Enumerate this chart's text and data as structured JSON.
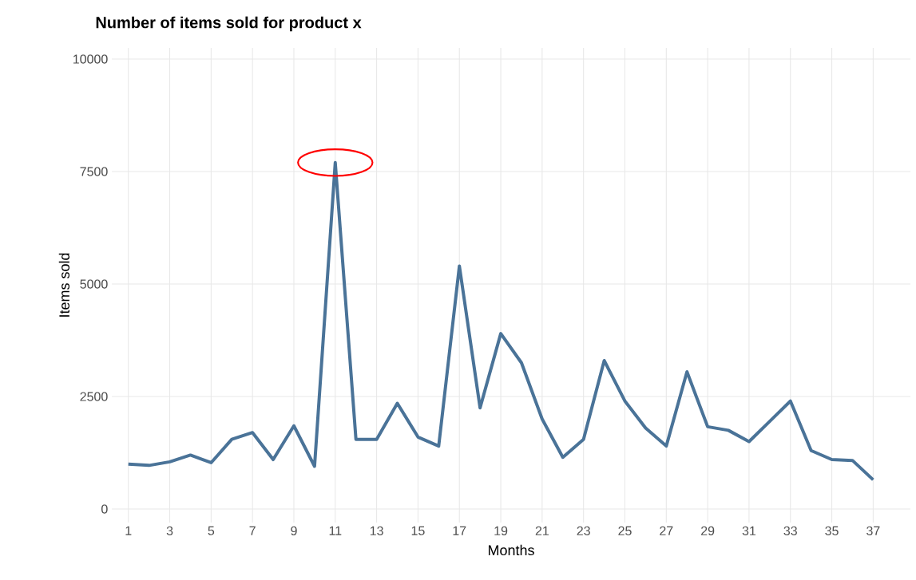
{
  "chart_data": {
    "type": "line",
    "title": "Number of items sold for product x",
    "xlabel": "Months",
    "ylabel": "Items sold",
    "x": [
      1,
      2,
      3,
      4,
      5,
      6,
      7,
      8,
      9,
      10,
      11,
      12,
      13,
      14,
      15,
      16,
      17,
      18,
      19,
      20,
      21,
      22,
      23,
      24,
      25,
      26,
      27,
      28,
      29,
      30,
      31,
      32,
      33,
      34,
      35,
      36,
      37
    ],
    "series": [
      {
        "color": "#4a7398",
        "values": [
          1000,
          970,
          1050,
          1200,
          1030,
          1550,
          1700,
          1100,
          1850,
          950,
          7700,
          1550,
          1550,
          2350,
          1600,
          1400,
          5400,
          2250,
          3900,
          3250,
          2000,
          1150,
          1550,
          3300,
          2400,
          1800,
          1400,
          3050,
          1830,
          1750,
          1500,
          1950,
          2400,
          1300,
          1100,
          1080,
          650
        ]
      }
    ],
    "xlim": [
      0.2,
      38.8
    ],
    "xticks": [
      1,
      3,
      5,
      7,
      9,
      11,
      13,
      15,
      17,
      19,
      21,
      23,
      25,
      27,
      29,
      31,
      33,
      35,
      37
    ],
    "ylim": [
      -300,
      10250
    ],
    "yticks": [
      0,
      2500,
      5000,
      7500,
      10000
    ],
    "grid": true,
    "marker": "none",
    "line_style": "solid"
  }
}
